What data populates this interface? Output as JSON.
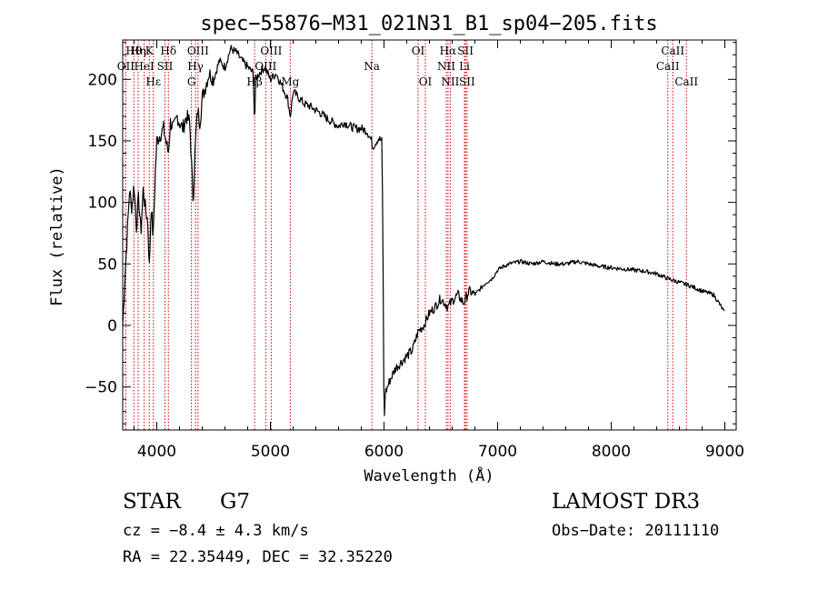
{
  "chart_data": {
    "type": "line",
    "title": "spec−55876−M31_021N31_B1_sp04−205.fits",
    "xlabel": "Wavelength (Å)",
    "ylabel": "Flux (relative)",
    "xlim": [
      3700,
      9100
    ],
    "ylim": [
      -85,
      232
    ],
    "xticks": [
      4000,
      5000,
      6000,
      7000,
      8000,
      9000
    ],
    "xtick_labels": [
      "4000",
      "5000",
      "6000",
      "7000",
      "8000",
      "9000"
    ],
    "yticks": [
      -50,
      0,
      50,
      100,
      150,
      200
    ],
    "ytick_labels": [
      "−50",
      "0",
      "50",
      "100",
      "150",
      "200"
    ],
    "grid": false,
    "series": [
      {
        "name": "spectrum",
        "color": "#000000",
        "x": [
          3700,
          3720,
          3740,
          3760,
          3780,
          3800,
          3820,
          3840,
          3860,
          3880,
          3900,
          3920,
          3935,
          3950,
          3968,
          3985,
          4000,
          4030,
          4060,
          4080,
          4101,
          4120,
          4150,
          4180,
          4200,
          4230,
          4260,
          4290,
          4320,
          4340,
          4360,
          4380,
          4400,
          4430,
          4460,
          4500,
          4550,
          4600,
          4650,
          4700,
          4750,
          4800,
          4850,
          4861,
          4870,
          4900,
          4950,
          5000,
          5050,
          5100,
          5150,
          5175,
          5200,
          5250,
          5300,
          5350,
          5400,
          5450,
          5500,
          5550,
          5600,
          5650,
          5700,
          5750,
          5800,
          5850,
          5890,
          5900,
          5950,
          5980,
          5990,
          6000,
          6010,
          6050,
          6100,
          6150,
          6200,
          6250,
          6300,
          6350,
          6400,
          6450,
          6500,
          6563,
          6600,
          6650,
          6700,
          6750,
          6800,
          6850,
          6900,
          6950,
          7000,
          7050,
          7100,
          7200,
          7300,
          7400,
          7500,
          7600,
          7700,
          7800,
          7900,
          8000,
          8100,
          8200,
          8300,
          8400,
          8500,
          8600,
          8700,
          8800,
          8900,
          8950,
          9000
        ],
        "y": [
          0,
          40,
          75,
          110,
          95,
          115,
          80,
          105,
          75,
          110,
          95,
          85,
          45,
          100,
          70,
          120,
          150,
          155,
          160,
          150,
          140,
          165,
          160,
          170,
          165,
          160,
          170,
          165,
          100,
          150,
          175,
          165,
          185,
          195,
          205,
          200,
          215,
          210,
          225,
          222,
          215,
          210,
          205,
          160,
          200,
          205,
          210,
          200,
          205,
          195,
          185,
          170,
          190,
          185,
          180,
          178,
          175,
          172,
          168,
          165,
          162,
          165,
          162,
          160,
          160,
          158,
          150,
          145,
          152,
          150,
          80,
          -85,
          -55,
          -45,
          -35,
          -30,
          -25,
          -20,
          -5,
          0,
          10,
          15,
          22,
          15,
          20,
          25,
          18,
          28,
          25,
          30,
          35,
          38,
          45,
          48,
          50,
          52,
          50,
          52,
          50,
          50,
          52,
          50,
          48,
          47,
          46,
          45,
          44,
          42,
          38,
          35,
          32,
          28,
          25,
          18,
          10
        ]
      }
    ],
    "lines": [
      {
        "label": "Hθ",
        "x": 3798,
        "row": 0
      },
      {
        "label": "OII",
        "x": 3727,
        "row": 1
      },
      {
        "label": "Hη",
        "x": 3836,
        "row": 0
      },
      {
        "label": "HeI",
        "x": 3889,
        "row": 1
      },
      {
        "label": "K",
        "x": 3934,
        "row": 0
      },
      {
        "label": "Hε",
        "x": 3970,
        "row": 2
      },
      {
        "label": "Hδ",
        "x": 4102,
        "row": 0
      },
      {
        "label": "SII",
        "x": 4072,
        "row": 1
      },
      {
        "label": "OIII",
        "x": 4363,
        "row": 0
      },
      {
        "label": "Hγ",
        "x": 4341,
        "row": 1
      },
      {
        "label": "G",
        "x": 4305,
        "row": 2
      },
      {
        "label": "Hβ",
        "x": 4861,
        "row": 2
      },
      {
        "label": "OIII",
        "x": 5007,
        "row": 0
      },
      {
        "label": "OIII",
        "x": 4959,
        "row": 1
      },
      {
        "label": "Mg",
        "x": 5175,
        "row": 2
      },
      {
        "label": "Na",
        "x": 5893,
        "row": 1
      },
      {
        "label": "OI",
        "x": 6300,
        "row": 0
      },
      {
        "label": "OI",
        "x": 6364,
        "row": 2
      },
      {
        "label": "Hα",
        "x": 6563,
        "row": 0
      },
      {
        "label": "NII",
        "x": 6548,
        "row": 1
      },
      {
        "label": "NII",
        "x": 6583,
        "row": 2
      },
      {
        "label": "SII",
        "x": 6717,
        "row": 0
      },
      {
        "label": "Li",
        "x": 6708,
        "row": 1
      },
      {
        "label": "SII",
        "x": 6731,
        "row": 2
      },
      {
        "label": "CaII",
        "x": 8498,
        "row": 1
      },
      {
        "label": "CaII",
        "x": 8542,
        "row": 0
      },
      {
        "label": "CaII",
        "x": 8662,
        "row": 2
      }
    ],
    "line_color": "#cc0000"
  },
  "info": {
    "class_label": "STAR",
    "subclass": "G7",
    "survey": "LAMOST DR3",
    "cz": "cz = −8.4 ± 4.3 km/s",
    "obs_date": "Obs−Date: 20111110",
    "coords": "RA =  22.35449, DEC =  32.35220"
  }
}
